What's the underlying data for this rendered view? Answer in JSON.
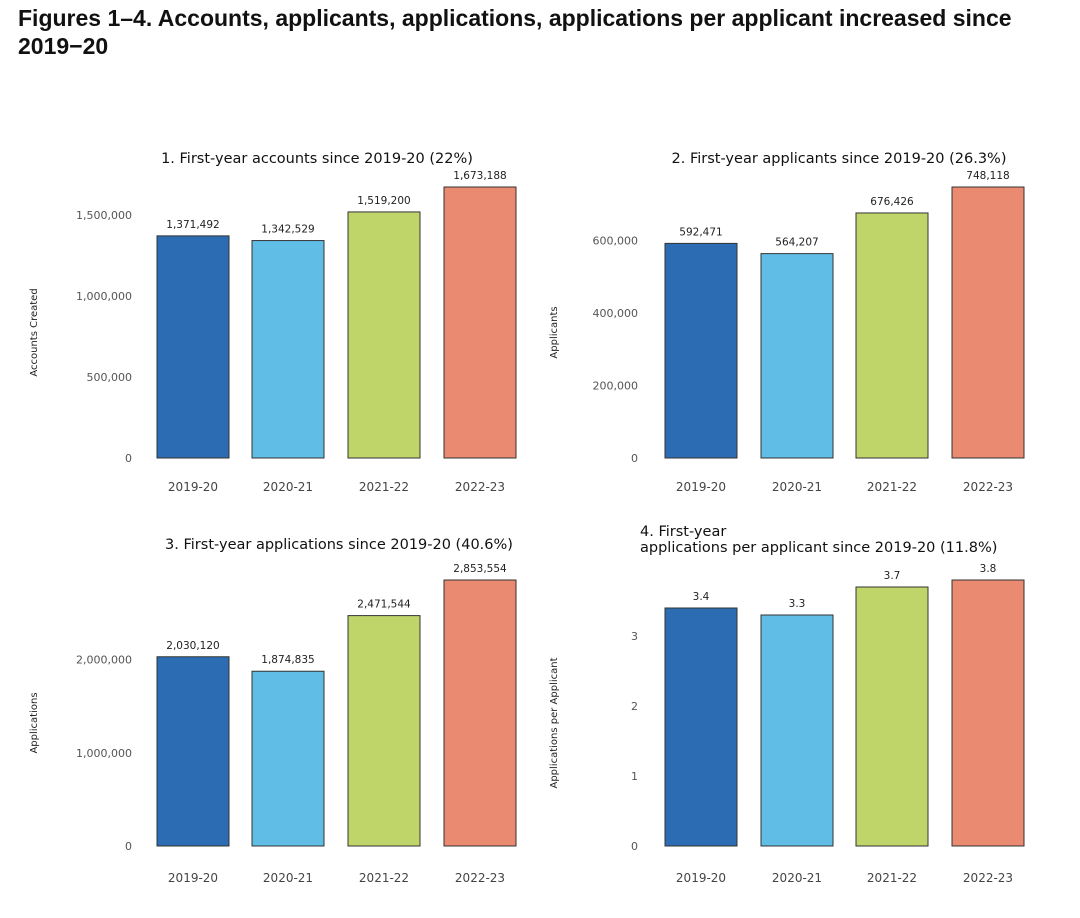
{
  "figure_title": "Figures 1–4. Accounts, applicants, applications, applications per applicant increased since 2019−20",
  "chart_data": [
    {
      "type": "bar",
      "title": "1. First-year accounts since 2019-20 (22%)",
      "ylabel": "Accounts Created",
      "categories": [
        "2019-20",
        "2020-21",
        "2021-22",
        "2022-23"
      ],
      "values": [
        1371492,
        1342529,
        1519200,
        1673188
      ],
      "value_labels": [
        "1,371,492",
        "1,342,529",
        "1,519,200",
        "1,673,188"
      ],
      "yticks": [
        0,
        500000,
        1000000,
        1500000
      ],
      "ytick_labels": [
        "0",
        "500,000",
        "1,000,000",
        "1,500,000"
      ],
      "ylim": [
        0,
        1673188
      ],
      "colors": [
        "#2b6cb3",
        "#5fbde6",
        "#bfd56a",
        "#ea8a70"
      ]
    },
    {
      "type": "bar",
      "title": "2. First-year applicants since 2019-20 (26.3%)",
      "ylabel": "Applicants",
      "categories": [
        "2019-20",
        "2020-21",
        "2021-22",
        "2022-23"
      ],
      "values": [
        592471,
        564207,
        676426,
        748118
      ],
      "value_labels": [
        "592,471",
        "564,207",
        "676,426",
        "748,118"
      ],
      "yticks": [
        0,
        200000,
        400000,
        600000
      ],
      "ytick_labels": [
        "0",
        "200,000",
        "400,000",
        "600,000"
      ],
      "ylim": [
        0,
        748118
      ],
      "colors": [
        "#2b6cb3",
        "#5fbde6",
        "#bfd56a",
        "#ea8a70"
      ]
    },
    {
      "type": "bar",
      "title": "3. First-year applications since 2019-20 (40.6%)",
      "ylabel": "Applications",
      "categories": [
        "2019-20",
        "2020-21",
        "2021-22",
        "2022-23"
      ],
      "values": [
        2030120,
        1874835,
        2471544,
        2853554
      ],
      "value_labels": [
        "2,030,120",
        "1,874,835",
        "2,471,544",
        "2,853,554"
      ],
      "yticks": [
        0,
        1000000,
        2000000
      ],
      "ytick_labels": [
        "0",
        "1,000,000",
        "2,000,000"
      ],
      "ylim": [
        0,
        2853554
      ],
      "colors": [
        "#2b6cb3",
        "#5fbde6",
        "#bfd56a",
        "#ea8a70"
      ]
    },
    {
      "type": "bar",
      "title": "4. First-year",
      "title_line2": "applications per applicant since 2019-20 (11.8%)",
      "ylabel": "Applications per Applicant",
      "categories": [
        "2019-20",
        "2020-21",
        "2021-22",
        "2022-23"
      ],
      "values": [
        3.4,
        3.3,
        3.7,
        3.8
      ],
      "value_labels": [
        "3.4",
        "3.3",
        "3.7",
        "3.8"
      ],
      "yticks": [
        0,
        1,
        2,
        3
      ],
      "ytick_labels": [
        "0",
        "1",
        "2",
        "3"
      ],
      "ylim": [
        0,
        3.8
      ],
      "colors": [
        "#2b6cb3",
        "#5fbde6",
        "#bfd56a",
        "#ea8a70"
      ]
    }
  ]
}
